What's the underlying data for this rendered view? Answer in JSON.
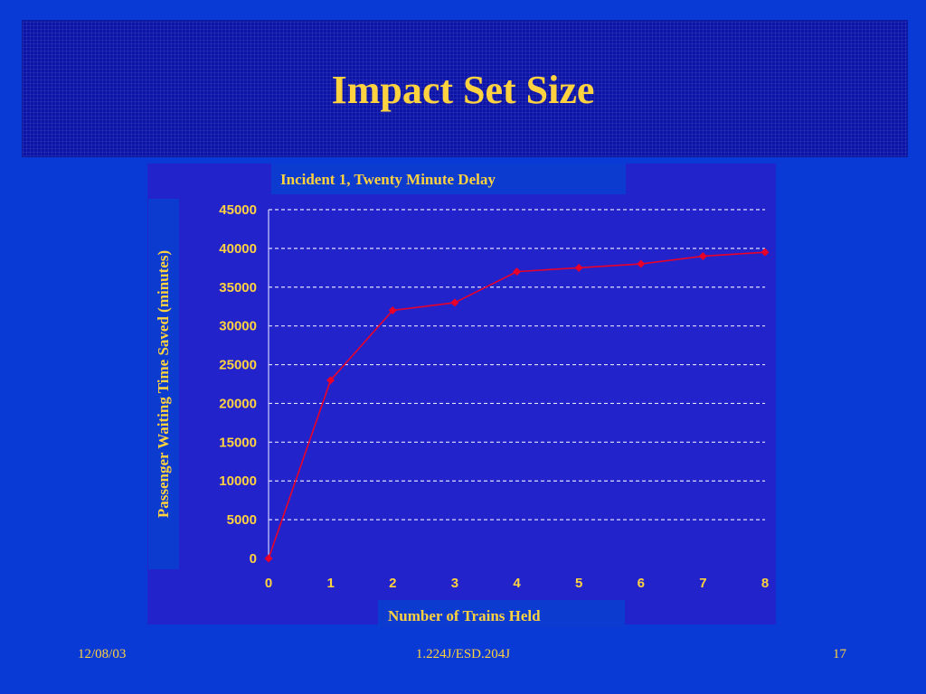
{
  "slide": {
    "title": "Impact Set Size",
    "footer_date": "12/08/03",
    "footer_course": "1.224J/ESD.204J",
    "footer_page": "17"
  },
  "colors": {
    "background": "#0a3ad6",
    "banner": "#0c14a8",
    "text": "#ffd23f",
    "plot_area": "#2323cc",
    "line": "#e8002a",
    "grid": "#e0e0ff"
  },
  "chart_data": {
    "type": "line",
    "title": "Incident 1, Twenty Minute Delay",
    "xlabel": "Number of Trains Held",
    "ylabel": "Passenger Waiting Time Saved (minutes)",
    "x": [
      0,
      1,
      2,
      3,
      4,
      5,
      6,
      7,
      8
    ],
    "series": [
      {
        "values": [
          0,
          23000,
          32000,
          33000,
          37000,
          37500,
          38000,
          39000,
          39500
        ]
      }
    ],
    "xlim": [
      0,
      8
    ],
    "ylim": [
      0,
      45000
    ],
    "yticks": [
      0,
      5000,
      10000,
      15000,
      20000,
      25000,
      30000,
      35000,
      40000,
      45000
    ],
    "xticks": [
      0,
      1,
      2,
      3,
      4,
      5,
      6,
      7,
      8
    ],
    "grid": "horizontal dashed",
    "marker": "diamond"
  }
}
